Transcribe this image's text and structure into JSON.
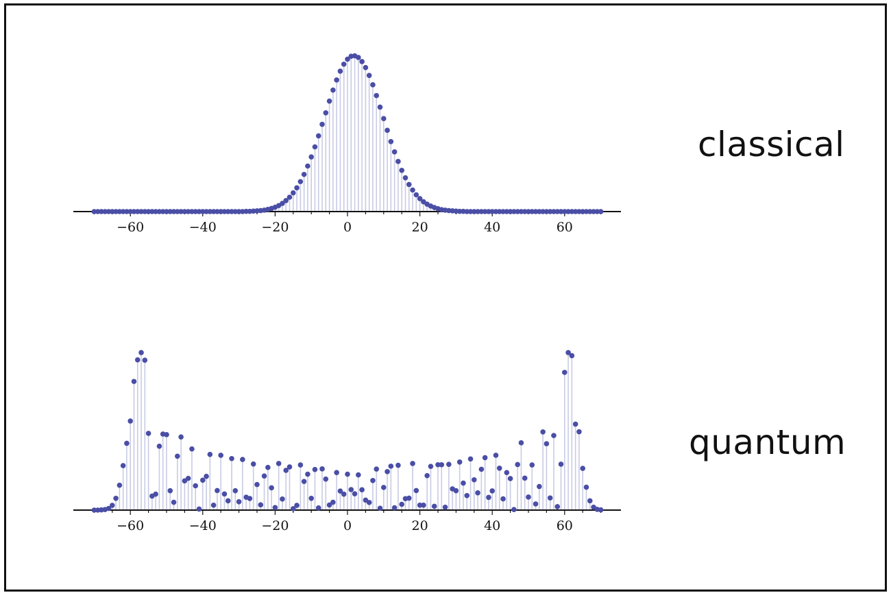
{
  "chart_data": [
    {
      "type": "scatter",
      "style": "stem",
      "label": "classical",
      "marker_color": "#4a4ea5",
      "stem_color": "#c8cbe4",
      "axis_color": "#111111",
      "xlim": [
        -72,
        72
      ],
      "ylim": [
        0,
        0.1
      ],
      "xticks": [
        -60,
        -40,
        -20,
        0,
        20,
        40,
        60
      ],
      "xtick_labels": [
        "−60",
        "−40",
        "−20",
        "0",
        "20",
        "40",
        "60"
      ],
      "grid": false,
      "x": [
        -70,
        -69,
        -68,
        -67,
        -66,
        -65,
        -64,
        -63,
        -62,
        -61,
        -60,
        -59,
        -58,
        -57,
        -56,
        -55,
        -54,
        -53,
        -52,
        -51,
        -50,
        -49,
        -48,
        -47,
        -46,
        -45,
        -44,
        -43,
        -42,
        -41,
        -40,
        -39,
        -38,
        -37,
        -36,
        -35,
        -34,
        -33,
        -32,
        -31,
        -30,
        -29,
        -28,
        -27,
        -26,
        -25,
        -24,
        -23,
        -22,
        -21,
        -20,
        -19,
        -18,
        -17,
        -16,
        -15,
        -14,
        -13,
        -12,
        -11,
        -10,
        -9,
        -8,
        -7,
        -6,
        -5,
        -4,
        -3,
        -2,
        -1,
        0,
        1,
        2,
        3,
        4,
        5,
        6,
        7,
        8,
        9,
        10,
        11,
        12,
        13,
        14,
        15,
        16,
        17,
        18,
        19,
        20,
        21,
        22,
        23,
        24,
        25,
        26,
        27,
        28,
        29,
        30,
        31,
        32,
        33,
        34,
        35,
        36,
        37,
        38,
        39,
        40,
        41,
        42,
        43,
        44,
        45,
        46,
        47,
        48,
        49,
        50,
        51,
        52,
        53,
        54,
        55,
        56,
        57,
        58,
        59,
        60,
        61,
        62,
        63,
        64,
        65,
        66,
        67,
        68,
        69,
        70
      ],
      "y": [
        0.0,
        0.0,
        0.0,
        0.0,
        0.0,
        0.0,
        0.0,
        0.0,
        0.0,
        0.0,
        0.0,
        0.0,
        0.0,
        0.0,
        0.0,
        0.0,
        0.0,
        0.0,
        0.0,
        0.0,
        0.0,
        0.0,
        0.0,
        0.0,
        0.0,
        0.0,
        0.0,
        0.0,
        0.0,
        0.0,
        0.0,
        0.0,
        0.0,
        0.0,
        0.0,
        0.0,
        0.0,
        0.0,
        0.0,
        0.0,
        0.0,
        0.0,
        0.0001,
        0.0001,
        0.0002,
        0.0003,
        0.0004,
        0.0006,
        0.0009,
        0.0013,
        0.0018,
        0.0025,
        0.0034,
        0.0046,
        0.006,
        0.0078,
        0.0099,
        0.0125,
        0.0155,
        0.019,
        0.0228,
        0.027,
        0.0316,
        0.0364,
        0.0412,
        0.0461,
        0.0507,
        0.0549,
        0.0586,
        0.0615,
        0.0636,
        0.0648,
        0.065,
        0.0643,
        0.0626,
        0.0601,
        0.0568,
        0.0529,
        0.0484,
        0.0436,
        0.0388,
        0.0339,
        0.0292,
        0.0249,
        0.0209,
        0.0172,
        0.0141,
        0.0113,
        0.009,
        0.007,
        0.0054,
        0.0041,
        0.0031,
        0.0023,
        0.0017,
        0.0012,
        0.0008,
        0.0006,
        0.0004,
        0.0003,
        0.0002,
        0.0001,
        0.0001,
        0.0,
        0.0,
        0.0,
        0.0,
        0.0,
        0.0,
        0.0,
        0.0,
        0.0,
        0.0,
        0.0,
        0.0,
        0.0,
        0.0,
        0.0,
        0.0,
        0.0,
        0.0,
        0.0,
        0.0,
        0.0,
        0.0,
        0.0,
        0.0,
        0.0,
        0.0,
        0.0,
        0.0,
        0.0,
        0.0,
        0.0,
        0.0,
        0.0,
        0.0,
        0.0,
        0.0,
        0.0,
        0.0
      ]
    },
    {
      "type": "scatter",
      "style": "stem",
      "label": "quantum",
      "marker_color": "#4a4ea5",
      "stem_color": "#c8cbe4",
      "axis_color": "#111111",
      "xlim": [
        -72,
        72
      ],
      "ylim": [
        0,
        0.1
      ],
      "xticks": [
        -60,
        -40,
        -20,
        0,
        20,
        40,
        60
      ],
      "xtick_labels": [
        "−60",
        "−40",
        "−20",
        "0",
        "20",
        "40",
        "60"
      ],
      "grid": false,
      "x": [
        -70,
        -69,
        -68,
        -67,
        -66,
        -65,
        -64,
        -63,
        -62,
        -61,
        -60,
        -59,
        -58,
        -57,
        -56,
        -55,
        -54,
        -53,
        -52,
        -51,
        -50,
        -49,
        -48,
        -47,
        -46,
        -45,
        -44,
        -43,
        -42,
        -41,
        -40,
        -39,
        -38,
        -37,
        -36,
        -35,
        -34,
        -33,
        -32,
        -31,
        -30,
        -29,
        -28,
        -27,
        -26,
        -25,
        -24,
        -23,
        -22,
        -21,
        -20,
        -19,
        -18,
        -17,
        -16,
        -15,
        -14,
        -13,
        -12,
        -11,
        -10,
        -9,
        -8,
        -7,
        -6,
        -5,
        -4,
        -3,
        -2,
        -1,
        0,
        1,
        2,
        3,
        4,
        5,
        6,
        7,
        8,
        9,
        10,
        11,
        12,
        13,
        14,
        15,
        16,
        17,
        18,
        19,
        20,
        21,
        22,
        23,
        24,
        25,
        26,
        27,
        28,
        29,
        30,
        31,
        32,
        33,
        34,
        35,
        36,
        37,
        38,
        39,
        40,
        41,
        42,
        43,
        44,
        45,
        46,
        47,
        48,
        49,
        50,
        51,
        52,
        53,
        54,
        55,
        56,
        57,
        58,
        59,
        60,
        61,
        62,
        63,
        64,
        65,
        66,
        67,
        68,
        69,
        70
      ],
      "y": [
        0.0,
        0.0,
        0.0001,
        0.0003,
        0.0009,
        0.0026,
        0.0065,
        0.0137,
        0.0245,
        0.0368,
        0.0491,
        0.0709,
        0.0828,
        0.0868,
        0.0826,
        0.0423,
        0.0077,
        0.0088,
        0.0352,
        0.0419,
        0.0416,
        0.0107,
        0.0043,
        0.0297,
        0.0403,
        0.0161,
        0.0175,
        0.0337,
        0.0134,
        0.0006,
        0.0165,
        0.0186,
        0.0307,
        0.0027,
        0.0108,
        0.0302,
        0.0089,
        0.0051,
        0.0284,
        0.0107,
        0.0046,
        0.0279,
        0.0071,
        0.0064,
        0.0254,
        0.0141,
        0.0029,
        0.0188,
        0.0235,
        0.0123,
        0.0014,
        0.0257,
        0.0061,
        0.0219,
        0.0238,
        0.0008,
        0.0026,
        0.0249,
        0.0158,
        0.0198,
        0.0065,
        0.0224,
        0.0012,
        0.0227,
        0.0171,
        0.0028,
        0.0043,
        0.0207,
        0.0105,
        0.0088,
        0.0198,
        0.0113,
        0.009,
        0.0194,
        0.0112,
        0.0055,
        0.0042,
        0.0163,
        0.0226,
        0.001,
        0.0125,
        0.0212,
        0.0242,
        0.0013,
        0.0247,
        0.0032,
        0.0063,
        0.0066,
        0.0257,
        0.0108,
        0.0027,
        0.0027,
        0.019,
        0.0241,
        0.0021,
        0.025,
        0.025,
        0.0016,
        0.0252,
        0.0117,
        0.0107,
        0.0265,
        0.0149,
        0.008,
        0.0282,
        0.0167,
        0.0095,
        0.0225,
        0.0289,
        0.007,
        0.0106,
        0.0302,
        0.0231,
        0.0062,
        0.0207,
        0.0174,
        0.0003,
        0.0251,
        0.0371,
        0.0176,
        0.0072,
        0.0249,
        0.0034,
        0.013,
        0.0431,
        0.0366,
        0.0067,
        0.0411,
        0.0019,
        0.0253,
        0.0759,
        0.0868,
        0.0851,
        0.0474,
        0.0432,
        0.023,
        0.0126,
        0.0051,
        0.0016,
        0.0004,
        0.0001
      ]
    }
  ]
}
